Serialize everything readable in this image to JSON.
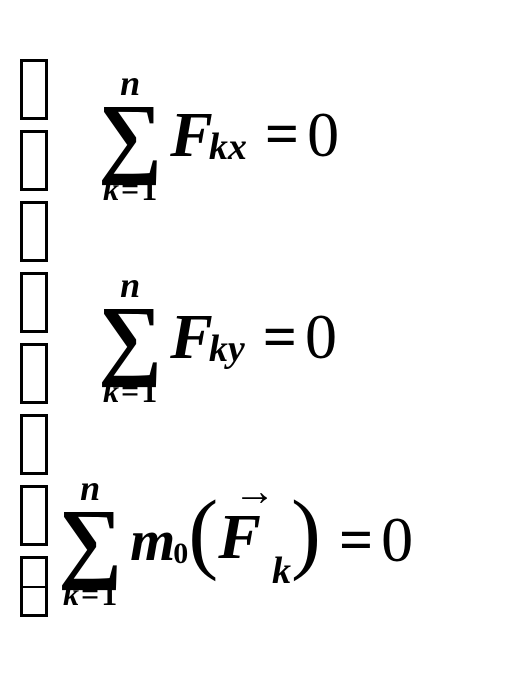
{
  "brace": {
    "segments": 8,
    "seg_width": 22,
    "seg_height": 55,
    "border_width": 3,
    "color": "#000000",
    "split_last": true
  },
  "equations": [
    {
      "type": "sum_force",
      "sum": {
        "upper": "n",
        "symbol": "∑",
        "lower_var": "k",
        "lower_eq": "=",
        "lower_val": "1"
      },
      "var": "F",
      "subscript": "kx",
      "rhs_eq": "=",
      "rhs_val": "0",
      "indent": true
    },
    {
      "type": "sum_force",
      "sum": {
        "upper": "n",
        "symbol": "∑",
        "lower_var": "k",
        "lower_eq": "=",
        "lower_val": "1"
      },
      "var": "F",
      "subscript": "ky",
      "rhs_eq": "=",
      "rhs_val": "0",
      "indent": true
    },
    {
      "type": "sum_moment",
      "sum": {
        "upper": "n",
        "symbol": "∑",
        "lower_var": "k",
        "lower_eq": "=",
        "lower_val": "1"
      },
      "mvar": "m",
      "msub": "0",
      "lparen": "(",
      "vec_arrow": "→",
      "var": "F",
      "subscript": "k",
      "rparen": ")",
      "rhs_eq": "=",
      "rhs_val": "0",
      "indent": false
    }
  ],
  "style": {
    "background_color": "#ffffff",
    "text_color": "#000000",
    "main_fontsize": 60,
    "sigma_fontsize": 90,
    "sub_fontsize": 38,
    "paren_fontsize": 90,
    "font_family": "Times New Roman, serif"
  }
}
